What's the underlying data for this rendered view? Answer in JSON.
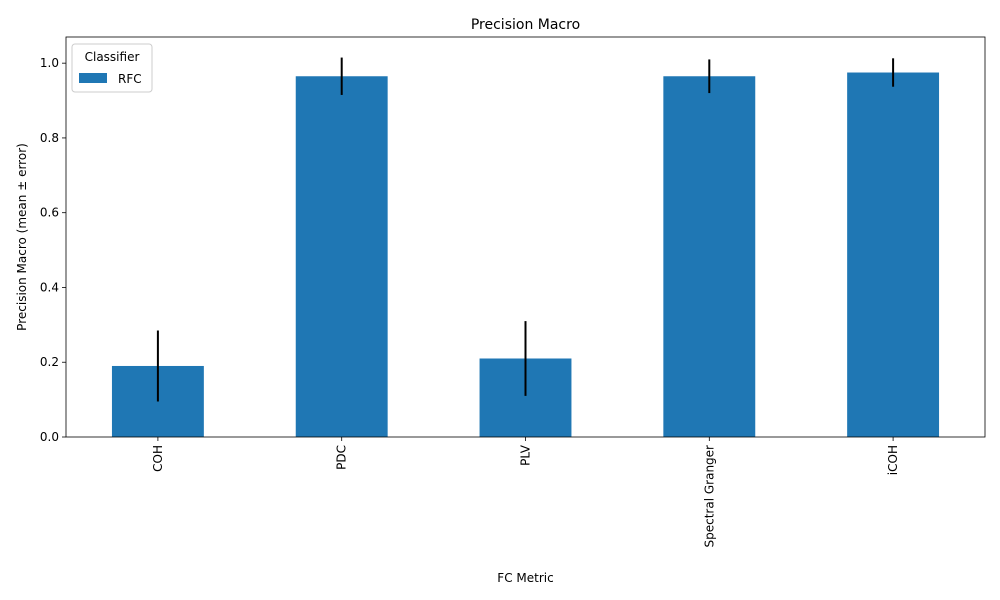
{
  "chart_data": {
    "type": "bar",
    "title": "Precision Macro",
    "xlabel": "FC Metric",
    "ylabel": "Precision Macro (mean ± error)",
    "categories": [
      "COH",
      "PDC",
      "PLV",
      "Spectral Granger",
      "iCOH"
    ],
    "series": [
      {
        "name": "RFC",
        "values": [
          0.19,
          0.965,
          0.21,
          0.965,
          0.975
        ],
        "errors": [
          0.095,
          0.05,
          0.1,
          0.045,
          0.038
        ],
        "color": "#1f77b4"
      }
    ],
    "error_color": "#000000",
    "ylim": [
      0,
      1.07
    ],
    "yticks": [
      0.0,
      0.2,
      0.4,
      0.6,
      0.8,
      1.0
    ],
    "ytick_labels": [
      "0.0",
      "0.2",
      "0.4",
      "0.6",
      "0.8",
      "1.0"
    ],
    "grid": false,
    "legend": {
      "title": "Classifier",
      "placement": "top-left"
    }
  }
}
